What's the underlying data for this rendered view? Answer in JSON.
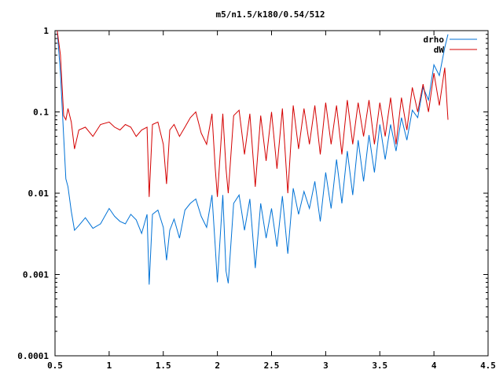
{
  "chart_data": {
    "type": "line",
    "title": "m5/n1.5/k180/0.54/512",
    "xlabel": "",
    "ylabel": "",
    "xlim": [
      0.5,
      4.5
    ],
    "ylim": [
      0.0001,
      1
    ],
    "y_scale": "log",
    "grid": false,
    "legend_position": "top-right",
    "x_ticks": [
      "0.5",
      "1",
      "1.5",
      "2",
      "2.5",
      "3",
      "3.5",
      "4",
      "4.5"
    ],
    "y_ticks": [
      "0.0001",
      "0.001",
      "0.01",
      "0.1",
      "1"
    ],
    "series": [
      {
        "name": "drho",
        "color": "#0072d6",
        "x": [
          0.52,
          0.55,
          0.58,
          0.6,
          0.62,
          0.65,
          0.68,
          0.72,
          0.78,
          0.85,
          0.92,
          1.0,
          1.05,
          1.1,
          1.15,
          1.2,
          1.25,
          1.3,
          1.35,
          1.37,
          1.4,
          1.45,
          1.5,
          1.53,
          1.56,
          1.6,
          1.65,
          1.7,
          1.75,
          1.8,
          1.85,
          1.9,
          1.95,
          1.98,
          2.0,
          2.05,
          2.08,
          2.1,
          2.15,
          2.2,
          2.25,
          2.3,
          2.35,
          2.4,
          2.45,
          2.5,
          2.55,
          2.6,
          2.65,
          2.7,
          2.75,
          2.8,
          2.85,
          2.9,
          2.95,
          3.0,
          3.05,
          3.1,
          3.15,
          3.2,
          3.25,
          3.3,
          3.35,
          3.4,
          3.45,
          3.5,
          3.55,
          3.6,
          3.65,
          3.7,
          3.75,
          3.8,
          3.85,
          3.9,
          3.95,
          4.0,
          4.05,
          4.1,
          4.13
        ],
        "values": [
          1.0,
          0.3,
          0.05,
          0.015,
          0.012,
          0.006,
          0.0035,
          0.004,
          0.005,
          0.0037,
          0.0042,
          0.0065,
          0.0052,
          0.0045,
          0.0042,
          0.0055,
          0.0047,
          0.0032,
          0.0055,
          0.00075,
          0.0055,
          0.0062,
          0.0038,
          0.0015,
          0.0035,
          0.0048,
          0.0028,
          0.0062,
          0.0075,
          0.0085,
          0.0052,
          0.0038,
          0.0095,
          0.0022,
          0.0008,
          0.0095,
          0.0011,
          0.00078,
          0.0075,
          0.0095,
          0.0035,
          0.0085,
          0.0012,
          0.0075,
          0.0028,
          0.0065,
          0.0022,
          0.0092,
          0.0018,
          0.0115,
          0.0055,
          0.0105,
          0.0065,
          0.014,
          0.0045,
          0.018,
          0.0065,
          0.026,
          0.0075,
          0.033,
          0.0095,
          0.045,
          0.014,
          0.052,
          0.018,
          0.07,
          0.026,
          0.07,
          0.033,
          0.085,
          0.045,
          0.105,
          0.085,
          0.2,
          0.14,
          0.38,
          0.28,
          0.62,
          0.9
        ]
      },
      {
        "name": "dW",
        "color": "#d40000",
        "x": [
          0.52,
          0.55,
          0.58,
          0.6,
          0.62,
          0.65,
          0.68,
          0.72,
          0.78,
          0.85,
          0.92,
          1.0,
          1.05,
          1.1,
          1.15,
          1.2,
          1.25,
          1.3,
          1.35,
          1.37,
          1.4,
          1.45,
          1.5,
          1.53,
          1.56,
          1.6,
          1.65,
          1.7,
          1.75,
          1.8,
          1.85,
          1.9,
          1.95,
          1.98,
          2.0,
          2.05,
          2.08,
          2.1,
          2.15,
          2.2,
          2.25,
          2.3,
          2.35,
          2.4,
          2.45,
          2.5,
          2.55,
          2.6,
          2.65,
          2.7,
          2.75,
          2.8,
          2.85,
          2.9,
          2.95,
          3.0,
          3.05,
          3.1,
          3.15,
          3.2,
          3.25,
          3.3,
          3.35,
          3.4,
          3.45,
          3.5,
          3.55,
          3.6,
          3.65,
          3.7,
          3.75,
          3.8,
          3.85,
          3.9,
          3.95,
          4.0,
          4.05,
          4.1,
          4.13
        ],
        "values": [
          1.0,
          0.5,
          0.09,
          0.08,
          0.11,
          0.075,
          0.035,
          0.06,
          0.065,
          0.05,
          0.07,
          0.075,
          0.065,
          0.06,
          0.07,
          0.065,
          0.05,
          0.06,
          0.065,
          0.009,
          0.07,
          0.075,
          0.04,
          0.013,
          0.06,
          0.07,
          0.05,
          0.065,
          0.085,
          0.1,
          0.055,
          0.04,
          0.095,
          0.02,
          0.009,
          0.095,
          0.02,
          0.01,
          0.09,
          0.105,
          0.03,
          0.095,
          0.012,
          0.09,
          0.025,
          0.1,
          0.02,
          0.11,
          0.01,
          0.12,
          0.035,
          0.11,
          0.04,
          0.12,
          0.03,
          0.13,
          0.04,
          0.12,
          0.03,
          0.14,
          0.04,
          0.13,
          0.05,
          0.14,
          0.04,
          0.13,
          0.05,
          0.15,
          0.04,
          0.15,
          0.06,
          0.2,
          0.1,
          0.22,
          0.1,
          0.3,
          0.12,
          0.35,
          0.08
        ]
      }
    ]
  }
}
